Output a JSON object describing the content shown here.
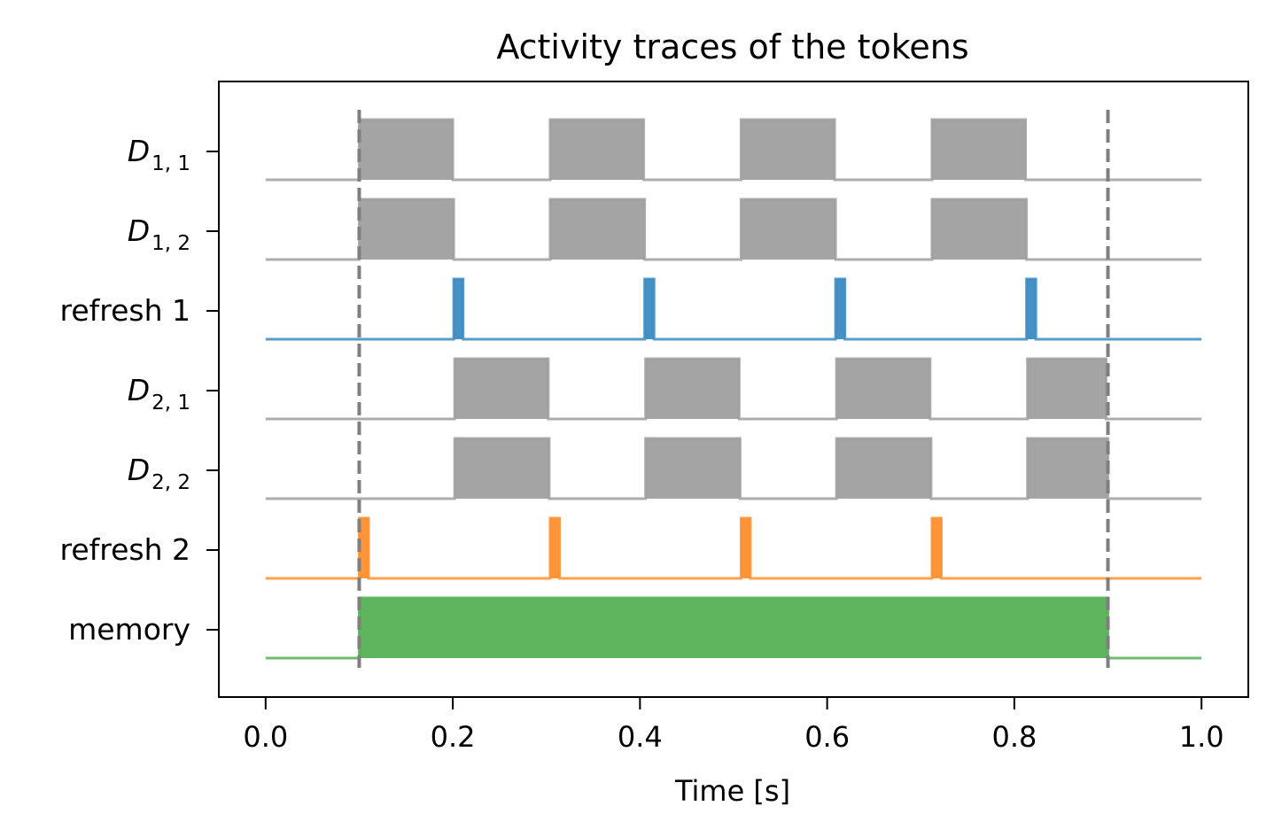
{
  "chart_data": {
    "type": "area",
    "title": "Activity traces of the tokens",
    "xlabel": "Time [s]",
    "ylabel": "",
    "xlim": [
      -0.05,
      1.05
    ],
    "x_ticks": [
      "0.0",
      "0.2",
      "0.4",
      "0.6",
      "0.8",
      "1.0"
    ],
    "x_tick_values": [
      0.0,
      0.2,
      0.4,
      0.6,
      0.8,
      1.0
    ],
    "trace_range": [
      0.0,
      1.0
    ],
    "grid": false,
    "markers": [
      0.1,
      0.9
    ],
    "rows": [
      {
        "label_main": "D",
        "label_sub": "1, 1",
        "italic": true,
        "color": "#9f9f9f",
        "active": [
          [
            0.1,
            0.2
          ],
          [
            0.304,
            0.404
          ],
          [
            0.508,
            0.608
          ],
          [
            0.712,
            0.812
          ]
        ]
      },
      {
        "label_main": "D",
        "label_sub": "1, 2",
        "italic": true,
        "color": "#9f9f9f",
        "active": [
          [
            0.1,
            0.201
          ],
          [
            0.304,
            0.405
          ],
          [
            0.508,
            0.609
          ],
          [
            0.712,
            0.813
          ]
        ]
      },
      {
        "label_main": "refresh 1",
        "label_sub": "",
        "italic": false,
        "color": "#3b8bc2",
        "active": [
          [
            0.201,
            0.211
          ],
          [
            0.405,
            0.415
          ],
          [
            0.609,
            0.619
          ],
          [
            0.813,
            0.823
          ]
        ]
      },
      {
        "label_main": "D",
        "label_sub": "2, 1",
        "italic": true,
        "color": "#9f9f9f",
        "active": [
          [
            0.202,
            0.302
          ],
          [
            0.406,
            0.506
          ],
          [
            0.61,
            0.71
          ],
          [
            0.814,
            0.898
          ]
        ]
      },
      {
        "label_main": "D",
        "label_sub": "2, 2",
        "italic": true,
        "color": "#9f9f9f",
        "active": [
          [
            0.202,
            0.303
          ],
          [
            0.406,
            0.507
          ],
          [
            0.61,
            0.711
          ],
          [
            0.814,
            0.9
          ]
        ]
      },
      {
        "label_main": "refresh 2",
        "label_sub": "",
        "italic": false,
        "color": "#ff8f2e",
        "active": [
          [
            0.1,
            0.11
          ],
          [
            0.304,
            0.314
          ],
          [
            0.508,
            0.518
          ],
          [
            0.712,
            0.722
          ]
        ]
      },
      {
        "label_main": "memory",
        "label_sub": "",
        "italic": false,
        "color": "#55b155",
        "active": [
          [
            0.1,
            0.9
          ]
        ]
      }
    ]
  }
}
